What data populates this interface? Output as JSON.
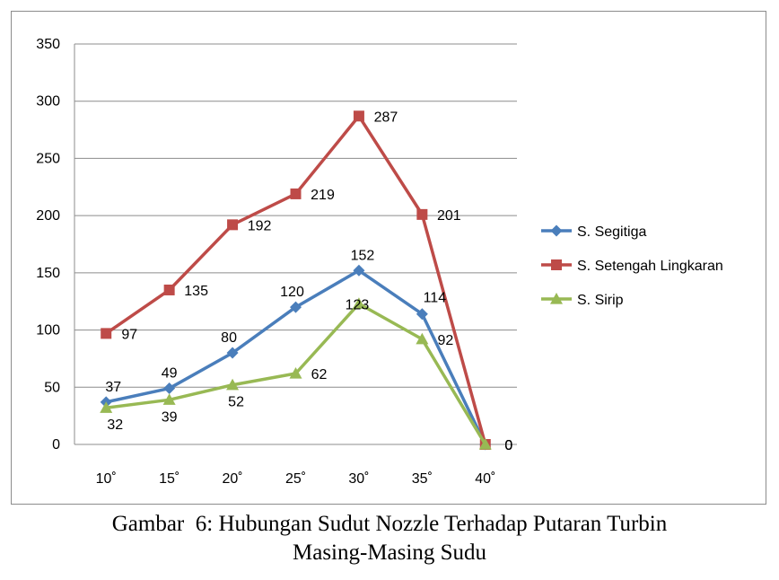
{
  "chart_data": {
    "type": "line",
    "categories": [
      "10˚",
      "15˚",
      "20˚",
      "25˚",
      "30˚",
      "35˚",
      "40˚"
    ],
    "series": [
      {
        "name": "S. Segitiga",
        "color": "#4a7ebb",
        "marker": "diamond",
        "values": [
          37,
          49,
          80,
          120,
          152,
          114,
          0
        ]
      },
      {
        "name": "S. Setengah Lingkaran",
        "color": "#be4b48",
        "marker": "square",
        "values": [
          97,
          135,
          192,
          219,
          287,
          201,
          0
        ]
      },
      {
        "name": "S. Sirip",
        "color": "#98b954",
        "marker": "triangle",
        "values": [
          32,
          39,
          52,
          62,
          123,
          92,
          0
        ]
      }
    ],
    "ylim": [
      0,
      350
    ],
    "yticks": [
      0,
      50,
      100,
      150,
      200,
      250,
      300,
      350
    ],
    "grid": true,
    "legend": "right",
    "title": "",
    "xlabel": "",
    "ylabel": ""
  },
  "caption": {
    "line1": "Gambar  6: Hubungan Sudut Nozzle Terhadap Putaran Turbin",
    "line2": "Masing-Masing Sudu"
  }
}
